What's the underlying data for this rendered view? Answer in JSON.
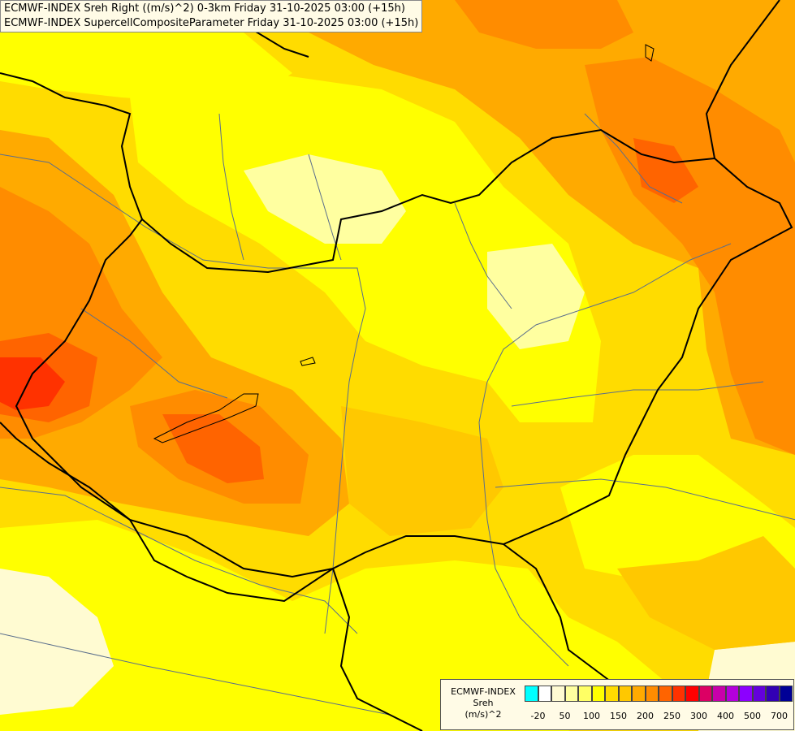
{
  "title_lines": [
    "ECMWF-INDEX Sreh Right ((m/s)^2) 0-3km Friday 31-10-2025 03:00 (+15h)",
    "ECMWF-INDEX SupercellCompositeParameter Friday 31-10-2025 03:00 (+15h)"
  ],
  "legend": {
    "title_line1": "ECMWF-INDEX",
    "title_line2": "Sreh",
    "title_line3": "(m/s)^2",
    "colors": [
      "#00ffff",
      "#ffffff",
      "#fffbd2",
      "#ffffa0",
      "#ffff64",
      "#ffff00",
      "#ffdc00",
      "#ffc800",
      "#ffaa00",
      "#ff8c00",
      "#ff6400",
      "#ff3200",
      "#ff0000",
      "#dc0064",
      "#c800aa",
      "#b400dc",
      "#8c00ff",
      "#6400dc",
      "#3200b4",
      "#000096"
    ],
    "ticks": [
      "-20",
      "50",
      "100",
      "150",
      "200",
      "250",
      "300",
      "400",
      "500",
      "700"
    ]
  },
  "colors": {
    "lightest": "#fffbd2",
    "pale": "#ffffa0",
    "yellow": "#ffff00",
    "gold": "#ffdc00",
    "amber": "#ffc800",
    "orange": "#ffaa00",
    "dark_orange": "#ff8c00",
    "red_orange": "#ff6400",
    "red": "#ff3200",
    "border": "#000000",
    "river": "#5a6e8c"
  }
}
